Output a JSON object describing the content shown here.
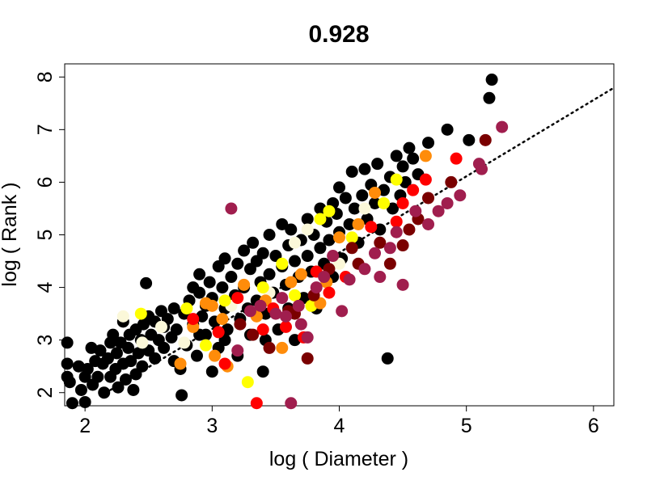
{
  "chart_data": {
    "type": "scatter",
    "title": "0.928",
    "xlabel": "log ( Diameter )",
    "ylabel": "log ( Rank )",
    "xlim": [
      1.84,
      6.16
    ],
    "ylim": [
      1.75,
      8.25
    ],
    "x_ticks": [
      "2",
      "3",
      "4",
      "5",
      "6"
    ],
    "y_ticks": [
      "2",
      "3",
      "4",
      "5",
      "6",
      "7",
      "8"
    ],
    "grid": false,
    "legend": "none",
    "fit_line": {
      "style": "dotted",
      "color": "#000000",
      "points": [
        [
          2.2,
          2.05
        ],
        [
          6.15,
          7.78
        ]
      ]
    },
    "colors": {
      "black": "#000000",
      "ivory": "#fbf8d9",
      "yellow": "#ffff00",
      "orange": "#ff8c0a",
      "red": "#ff0000",
      "darkred": "#7a0000",
      "maroon": "#a01e4e"
    },
    "series": [
      {
        "color": "#000000",
        "points": [
          [
            1.86,
            2.95
          ],
          [
            1.86,
            2.55
          ],
          [
            1.86,
            2.3
          ],
          [
            1.9,
            1.8
          ],
          [
            1.88,
            2.2
          ],
          [
            1.95,
            2.5
          ],
          [
            1.97,
            2.05
          ],
          [
            2.0,
            2.3
          ],
          [
            2.0,
            1.82
          ],
          [
            2.02,
            2.45
          ],
          [
            2.05,
            2.85
          ],
          [
            2.06,
            2.15
          ],
          [
            2.08,
            2.6
          ],
          [
            2.1,
            2.3
          ],
          [
            2.12,
            2.8
          ],
          [
            2.14,
            2.55
          ],
          [
            2.15,
            2.0
          ],
          [
            2.18,
            2.65
          ],
          [
            2.2,
            2.95
          ],
          [
            2.2,
            2.3
          ],
          [
            2.22,
            3.1
          ],
          [
            2.24,
            2.45
          ],
          [
            2.25,
            2.75
          ],
          [
            2.26,
            2.1
          ],
          [
            2.28,
            2.95
          ],
          [
            2.3,
            2.55
          ],
          [
            2.3,
            3.35
          ],
          [
            2.32,
            2.25
          ],
          [
            2.34,
            2.85
          ],
          [
            2.35,
            3.1
          ],
          [
            2.36,
            2.6
          ],
          [
            2.38,
            2.05
          ],
          [
            2.4,
            3.2
          ],
          [
            2.4,
            2.35
          ],
          [
            2.42,
            2.75
          ],
          [
            2.44,
            3.0
          ],
          [
            2.45,
            2.5
          ],
          [
            2.46,
            3.3
          ],
          [
            2.48,
            4.08
          ],
          [
            2.5,
            2.8
          ],
          [
            2.5,
            3.45
          ],
          [
            2.52,
            3.1
          ],
          [
            2.55,
            2.65
          ],
          [
            2.55,
            3.35
          ],
          [
            2.58,
            3.0
          ],
          [
            2.6,
            3.55
          ],
          [
            2.62,
            2.85
          ],
          [
            2.62,
            3.25
          ],
          [
            2.65,
            3.4
          ],
          [
            2.68,
            3.05
          ],
          [
            2.7,
            3.6
          ],
          [
            2.72,
            3.2
          ],
          [
            2.75,
            2.45
          ],
          [
            2.76,
            1.95
          ],
          [
            2.78,
            3.5
          ],
          [
            2.8,
            2.9
          ],
          [
            2.82,
            3.75
          ],
          [
            2.85,
            3.3
          ],
          [
            2.85,
            4.0
          ],
          [
            2.88,
            2.7
          ],
          [
            2.9,
            3.9
          ],
          [
            2.9,
            4.25
          ],
          [
            2.92,
            3.45
          ],
          [
            2.95,
            3.1
          ],
          [
            2.95,
            3.65
          ],
          [
            2.98,
            4.1
          ],
          [
            3.0,
            2.4
          ],
          [
            3.0,
            3.8
          ],
          [
            3.02,
            3.35
          ],
          [
            3.05,
            4.4
          ],
          [
            3.05,
            2.85
          ],
          [
            3.08,
            4.0
          ],
          [
            3.1,
            3.6
          ],
          [
            3.1,
            4.55
          ],
          [
            3.12,
            3.2
          ],
          [
            3.15,
            4.2
          ],
          [
            3.18,
            3.85
          ],
          [
            3.2,
            4.45
          ],
          [
            3.2,
            2.7
          ],
          [
            3.22,
            3.4
          ],
          [
            3.25,
            4.0
          ],
          [
            3.25,
            4.7
          ],
          [
            3.28,
            3.6
          ],
          [
            3.3,
            4.35
          ],
          [
            3.3,
            3.1
          ],
          [
            3.32,
            4.85
          ],
          [
            3.35,
            3.75
          ],
          [
            3.35,
            4.5
          ],
          [
            3.38,
            4.1
          ],
          [
            3.4,
            2.4
          ],
          [
            3.4,
            4.65
          ],
          [
            3.42,
            3.5
          ],
          [
            3.45,
            4.25
          ],
          [
            3.45,
            5.0
          ],
          [
            3.48,
            3.9
          ],
          [
            3.5,
            4.6
          ],
          [
            3.52,
            3.2
          ],
          [
            3.55,
            4.4
          ],
          [
            3.55,
            5.2
          ],
          [
            3.58,
            4.05
          ],
          [
            3.6,
            4.8
          ],
          [
            3.6,
            3.6
          ],
          [
            3.62,
            5.1
          ],
          [
            3.65,
            4.5
          ],
          [
            3.65,
            3.0
          ],
          [
            3.68,
            4.2
          ],
          [
            3.7,
            4.9
          ],
          [
            3.72,
            3.8
          ],
          [
            3.75,
            4.6
          ],
          [
            3.75,
            5.3
          ],
          [
            3.78,
            4.3
          ],
          [
            3.8,
            5.0
          ],
          [
            3.82,
            3.6
          ],
          [
            3.85,
            4.75
          ],
          [
            3.85,
            5.5
          ],
          [
            3.88,
            4.45
          ],
          [
            3.9,
            5.25
          ],
          [
            3.92,
            4.9
          ],
          [
            3.95,
            5.6
          ],
          [
            3.95,
            4.2
          ],
          [
            3.98,
            5.4
          ],
          [
            4.0,
            5.05
          ],
          [
            4.0,
            5.9
          ],
          [
            4.02,
            4.55
          ],
          [
            4.05,
            5.7
          ],
          [
            4.08,
            5.2
          ],
          [
            4.1,
            6.2
          ],
          [
            4.12,
            5.5
          ],
          [
            4.15,
            4.85
          ],
          [
            4.18,
            5.75
          ],
          [
            4.2,
            6.25
          ],
          [
            4.22,
            5.3
          ],
          [
            4.25,
            5.95
          ],
          [
            4.28,
            5.6
          ],
          [
            4.3,
            6.35
          ],
          [
            4.32,
            5.1
          ],
          [
            4.35,
            5.85
          ],
          [
            4.38,
            2.65
          ],
          [
            4.4,
            6.1
          ],
          [
            4.42,
            5.5
          ],
          [
            4.45,
            6.5
          ],
          [
            4.48,
            5.75
          ],
          [
            4.5,
            6.3
          ],
          [
            4.52,
            6.0
          ],
          [
            4.55,
            6.65
          ],
          [
            4.58,
            6.45
          ],
          [
            4.62,
            6.15
          ],
          [
            4.7,
            6.75
          ],
          [
            4.85,
            7.0
          ],
          [
            5.02,
            6.8
          ],
          [
            5.18,
            7.6
          ],
          [
            5.2,
            7.95
          ],
          [
            3.42,
            3.0
          ],
          [
            2.7,
            2.6
          ],
          [
            2.9,
            3.1
          ],
          [
            3.1,
            3.0
          ]
        ]
      },
      {
        "color": "#fbf8d9",
        "points": [
          [
            2.3,
            3.45
          ],
          [
            2.45,
            2.95
          ],
          [
            2.6,
            3.25
          ],
          [
            2.78,
            2.95
          ],
          [
            3.15,
            3.65
          ],
          [
            3.45,
            3.9
          ],
          [
            3.65,
            4.85
          ],
          [
            3.75,
            5.1
          ],
          [
            4.0,
            4.45
          ],
          [
            4.2,
            5.5
          ]
        ]
      },
      {
        "color": "#ffff00",
        "points": [
          [
            2.44,
            3.5
          ],
          [
            2.8,
            3.6
          ],
          [
            2.95,
            2.9
          ],
          [
            3.1,
            3.75
          ],
          [
            3.28,
            2.2
          ],
          [
            3.4,
            4.0
          ],
          [
            3.55,
            4.45
          ],
          [
            3.65,
            3.85
          ],
          [
            3.78,
            3.65
          ],
          [
            3.85,
            5.3
          ],
          [
            3.92,
            5.45
          ],
          [
            4.1,
            4.95
          ],
          [
            4.45,
            6.05
          ],
          [
            4.35,
            5.6
          ]
        ]
      },
      {
        "color": "#ff8c0a",
        "points": [
          [
            2.75,
            2.55
          ],
          [
            2.85,
            3.25
          ],
          [
            2.95,
            3.7
          ],
          [
            3.0,
            3.65
          ],
          [
            3.02,
            2.7
          ],
          [
            3.08,
            3.4
          ],
          [
            3.12,
            2.5
          ],
          [
            3.25,
            4.05
          ],
          [
            3.35,
            3.45
          ],
          [
            3.42,
            3.75
          ],
          [
            3.55,
            2.85
          ],
          [
            3.62,
            4.1
          ],
          [
            3.7,
            4.25
          ],
          [
            3.85,
            3.7
          ],
          [
            3.9,
            4.1
          ],
          [
            4.0,
            4.95
          ],
          [
            4.15,
            5.2
          ],
          [
            4.28,
            5.8
          ],
          [
            4.68,
            6.5
          ]
        ]
      },
      {
        "color": "#ff0000",
        "points": [
          [
            2.85,
            3.4
          ],
          [
            3.05,
            3.15
          ],
          [
            3.1,
            2.55
          ],
          [
            3.2,
            3.8
          ],
          [
            3.35,
            1.8
          ],
          [
            3.4,
            3.2
          ],
          [
            3.48,
            3.6
          ],
          [
            3.58,
            3.25
          ],
          [
            3.72,
            3.05
          ],
          [
            3.82,
            4.3
          ],
          [
            3.92,
            3.9
          ],
          [
            4.05,
            4.2
          ],
          [
            4.25,
            5.15
          ],
          [
            4.45,
            5.25
          ],
          [
            4.5,
            5.6
          ],
          [
            4.58,
            5.85
          ],
          [
            4.68,
            6.05
          ],
          [
            4.92,
            6.45
          ]
        ]
      },
      {
        "color": "#7a0000",
        "points": [
          [
            3.22,
            3.3
          ],
          [
            3.32,
            3.1
          ],
          [
            3.45,
            2.85
          ],
          [
            3.6,
            3.55
          ],
          [
            3.65,
            3.5
          ],
          [
            3.75,
            2.65
          ],
          [
            3.8,
            3.85
          ],
          [
            3.92,
            4.35
          ],
          [
            4.1,
            4.75
          ],
          [
            4.15,
            4.45
          ],
          [
            4.32,
            4.85
          ],
          [
            4.4,
            4.45
          ],
          [
            4.5,
            4.8
          ],
          [
            4.55,
            5.1
          ],
          [
            4.62,
            5.3
          ],
          [
            4.7,
            5.7
          ],
          [
            4.88,
            6.0
          ],
          [
            5.15,
            6.8
          ]
        ]
      },
      {
        "color": "#a01e4e",
        "points": [
          [
            3.15,
            5.5
          ],
          [
            3.2,
            2.8
          ],
          [
            3.3,
            3.55
          ],
          [
            3.38,
            3.65
          ],
          [
            3.5,
            3.5
          ],
          [
            3.55,
            3.8
          ],
          [
            3.62,
            1.8
          ],
          [
            3.7,
            3.3
          ],
          [
            3.75,
            3.05
          ],
          [
            3.82,
            4.0
          ],
          [
            3.88,
            4.2
          ],
          [
            3.95,
            4.6
          ],
          [
            4.02,
            3.55
          ],
          [
            4.08,
            4.15
          ],
          [
            4.2,
            4.35
          ],
          [
            4.28,
            4.65
          ],
          [
            4.32,
            4.2
          ],
          [
            4.4,
            4.75
          ],
          [
            4.45,
            5.05
          ],
          [
            4.5,
            4.05
          ],
          [
            4.6,
            5.45
          ],
          [
            4.7,
            5.2
          ],
          [
            4.78,
            5.45
          ],
          [
            4.85,
            5.6
          ],
          [
            4.95,
            5.75
          ],
          [
            5.1,
            6.35
          ],
          [
            5.12,
            6.25
          ],
          [
            5.28,
            7.05
          ],
          [
            3.58,
            3.45
          ],
          [
            3.68,
            3.65
          ]
        ]
      }
    ]
  }
}
